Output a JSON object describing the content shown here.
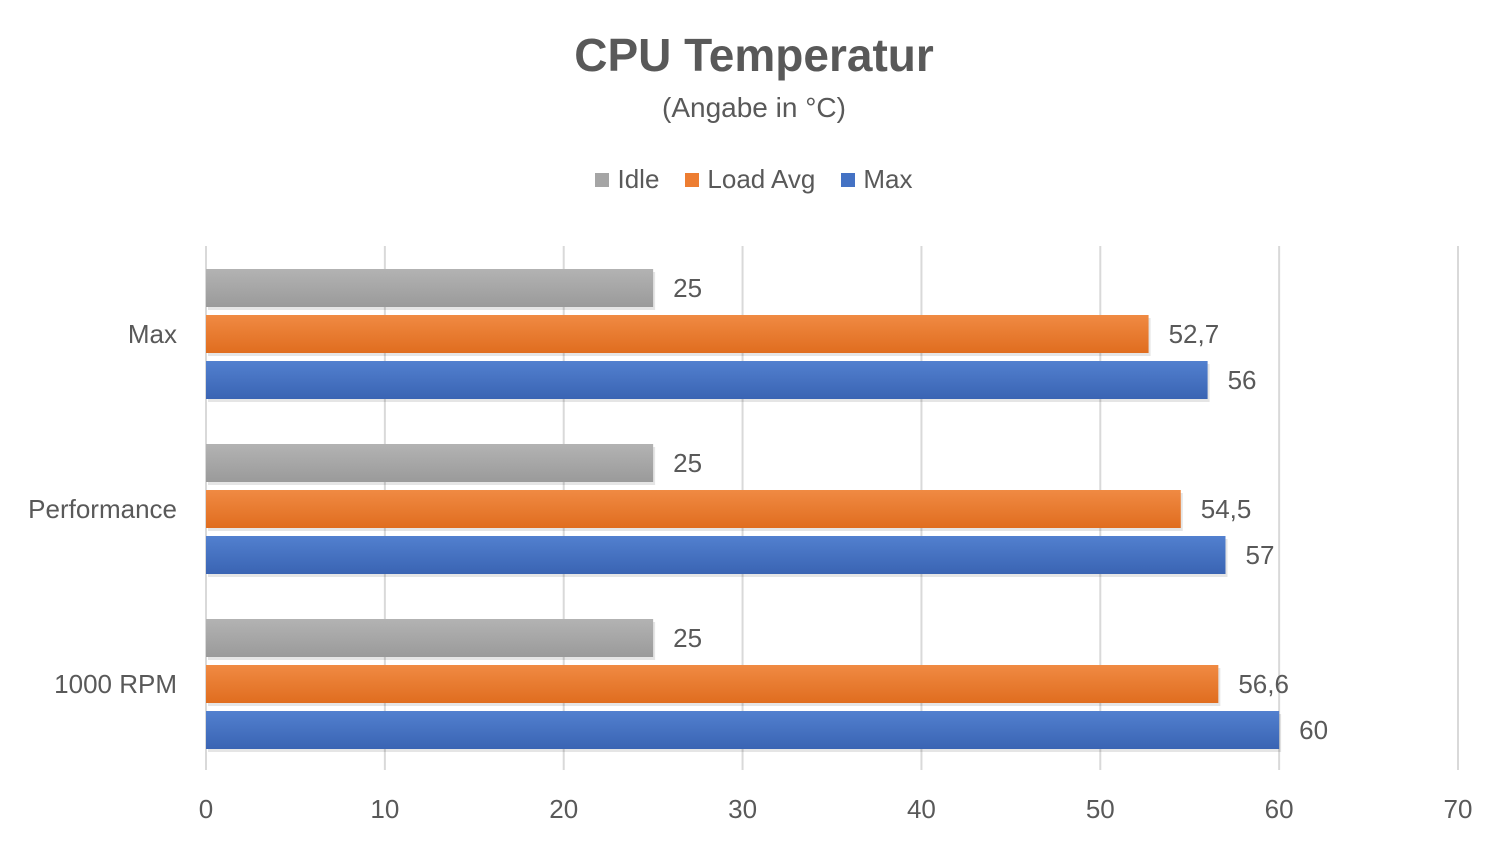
{
  "chart_data": {
    "type": "bar",
    "orientation": "horizontal",
    "title": "CPU Temperatur",
    "subtitle": "(Angabe in °C)",
    "categories": [
      "Max",
      "Performance",
      "1000 RPM"
    ],
    "series": [
      {
        "name": "Idle",
        "color": "#a5a5a5",
        "values": [
          25,
          25,
          25
        ],
        "labels": [
          "25",
          "25",
          "25"
        ]
      },
      {
        "name": "Load Avg",
        "color": "#ed7d31",
        "values": [
          52.7,
          54.5,
          56.6
        ],
        "labels": [
          "52,7",
          "54,5",
          "56,6"
        ]
      },
      {
        "name": "Max",
        "color": "#4472c4",
        "values": [
          56,
          57,
          60
        ],
        "labels": [
          "56",
          "57",
          "60"
        ]
      }
    ],
    "xlim": [
      0,
      70
    ],
    "xticks": [
      "0",
      "10",
      "20",
      "30",
      "40",
      "50",
      "60",
      "70"
    ],
    "grid": true,
    "legend": "top"
  }
}
